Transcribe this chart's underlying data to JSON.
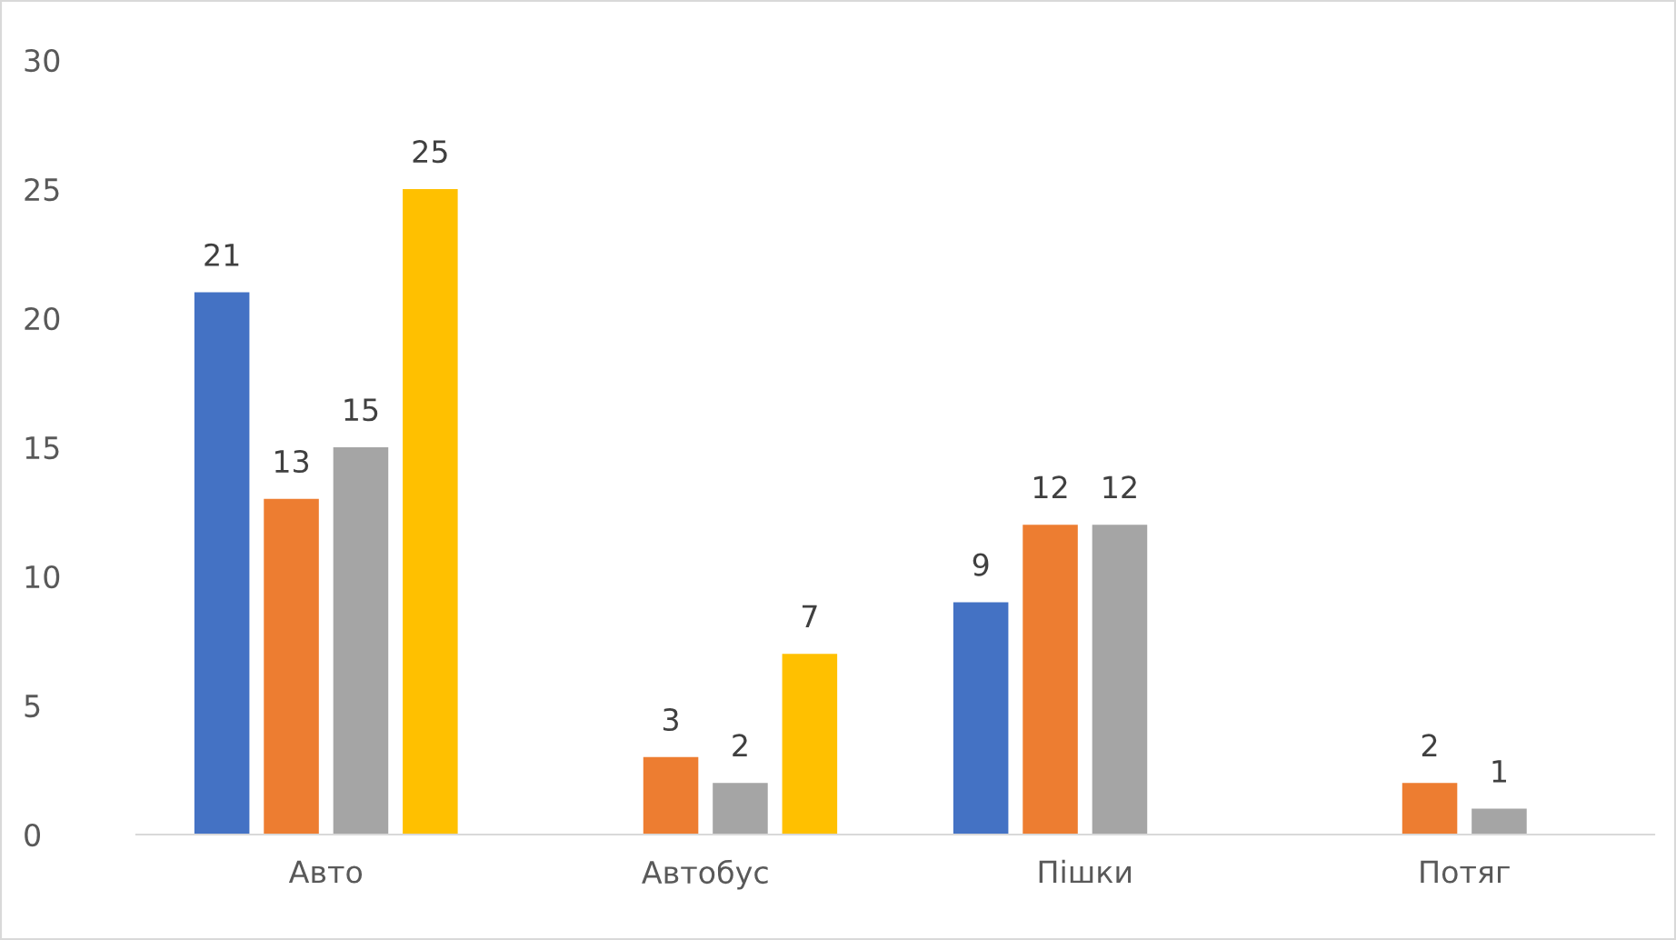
{
  "chart_data": {
    "type": "bar",
    "categories": [
      "Авто",
      "Автобус",
      "Пішки",
      "Потяг"
    ],
    "series": [
      {
        "color": "#4472c4",
        "values": [
          21,
          null,
          9,
          null
        ]
      },
      {
        "color": "#ed7d31",
        "values": [
          13,
          3,
          12,
          2
        ]
      },
      {
        "color": "#a5a5a5",
        "values": [
          15,
          2,
          12,
          1
        ]
      },
      {
        "color": "#ffc000",
        "values": [
          25,
          7,
          null,
          null
        ]
      }
    ],
    "ylim": [
      0,
      30
    ],
    "yticks": [
      0,
      5,
      10,
      15,
      20,
      25,
      30
    ],
    "grid": false,
    "legend": false,
    "data_labels": true
  }
}
